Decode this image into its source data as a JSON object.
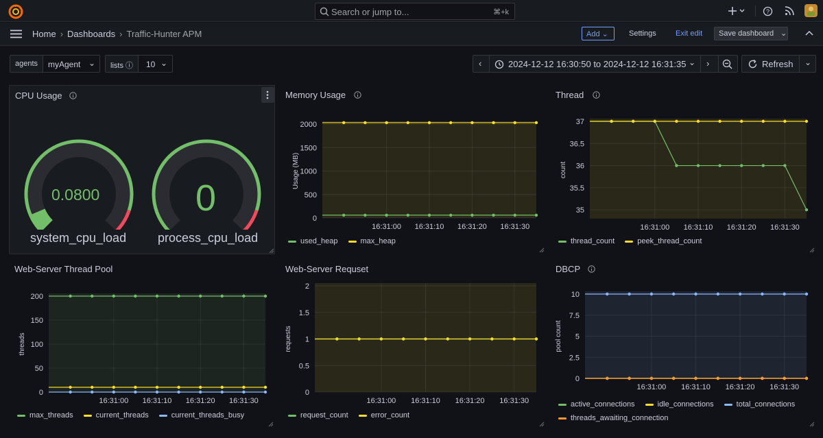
{
  "search": {
    "placeholder": "Search or jump to...",
    "shortcut": "⌘+k"
  },
  "breadcrumb": {
    "home": "Home",
    "dashboards": "Dashboards",
    "current": "Traffic-Hunter APM"
  },
  "toolbar": {
    "add": "Add",
    "settings": "Settings",
    "exit_edit": "Exit edit",
    "save": "Save dashboard"
  },
  "variables": {
    "agents_label": "agents",
    "agents_value": "myAgent",
    "lists_label": "lists",
    "lists_value": "10"
  },
  "time_range": "2024-12-12 16:30:50 to 2024-12-12 16:31:35",
  "refresh_label": "Refresh",
  "colors": {
    "green": "#73bf69",
    "yellow": "#fade2a",
    "blue": "#8ab8ff",
    "orange": "#ff9830",
    "red": "#f2495c"
  },
  "panels": {
    "cpu": {
      "title": "CPU Usage",
      "gauges": [
        {
          "name": "system_cpu_load",
          "display": "0.0800",
          "fraction": 0.08
        },
        {
          "name": "process_cpu_load",
          "display": "0",
          "fraction": 0
        }
      ]
    },
    "memory": {
      "title": "Memory Usage"
    },
    "thread": {
      "title": "Thread"
    },
    "pool": {
      "title": "Web-Server Thread Pool"
    },
    "request": {
      "title": "Web-Server Requset"
    },
    "dbcp": {
      "title": "DBCP"
    }
  },
  "chart_data": [
    {
      "id": "memory",
      "type": "line",
      "ylabel": "Usage (MB)",
      "ylim": [
        0,
        2000
      ],
      "yticks": [
        "0",
        "500",
        "1000",
        "1500",
        "2000"
      ],
      "xticks": [
        "16:31:00",
        "16:31:10",
        "16:31:20",
        "16:31:30"
      ],
      "x": [
        50,
        55,
        60,
        65,
        70,
        75,
        80,
        85,
        90,
        95
      ],
      "series": [
        {
          "name": "used_heap",
          "color": "#73bf69",
          "values": [
            60,
            60,
            60,
            60,
            60,
            60,
            60,
            60,
            60,
            60
          ]
        },
        {
          "name": "max_heap",
          "color": "#fade2a",
          "values": [
            2030,
            2030,
            2030,
            2030,
            2030,
            2030,
            2030,
            2030,
            2030,
            2030
          ]
        }
      ]
    },
    {
      "id": "thread",
      "type": "line",
      "ylabel": "count",
      "ylim": [
        34.8,
        37
      ],
      "yticks": [
        "35",
        "35.5",
        "36",
        "36.5",
        "37"
      ],
      "xticks": [
        "16:31:00",
        "16:31:10",
        "16:31:20",
        "16:31:30"
      ],
      "x": [
        50,
        55,
        60,
        65,
        70,
        75,
        80,
        85,
        90,
        95
      ],
      "series": [
        {
          "name": "thread_count",
          "color": "#73bf69",
          "values": [
            37,
            37,
            37,
            36,
            36,
            36,
            36,
            36,
            36,
            35
          ]
        },
        {
          "name": "peek_thread_count",
          "color": "#fade2a",
          "values": [
            37,
            37,
            37,
            37,
            37,
            37,
            37,
            37,
            37,
            37
          ]
        }
      ]
    },
    {
      "id": "pool",
      "type": "line",
      "ylabel": "threads",
      "ylim": [
        0,
        200
      ],
      "yticks": [
        "0",
        "50",
        "100",
        "150",
        "200"
      ],
      "xticks": [
        "16:31:00",
        "16:31:10",
        "16:31:20",
        "16:31:30"
      ],
      "x": [
        50,
        55,
        60,
        65,
        70,
        75,
        80,
        85,
        90,
        95
      ],
      "series": [
        {
          "name": "max_threads",
          "color": "#73bf69",
          "values": [
            200,
            200,
            200,
            200,
            200,
            200,
            200,
            200,
            200,
            200
          ]
        },
        {
          "name": "current_threads",
          "color": "#fade2a",
          "values": [
            10,
            10,
            10,
            10,
            10,
            10,
            10,
            10,
            10,
            10
          ]
        },
        {
          "name": "current_threads_busy",
          "color": "#8ab8ff",
          "values": [
            0,
            0,
            0,
            0,
            0,
            0,
            0,
            0,
            0,
            0
          ]
        }
      ]
    },
    {
      "id": "request",
      "type": "line",
      "ylabel": "requests",
      "ylim": [
        0,
        2
      ],
      "yticks": [
        "0",
        "0.5",
        "1",
        "1.5",
        "2"
      ],
      "xticks": [
        "16:31:00",
        "16:31:10",
        "16:31:20",
        "16:31:30"
      ],
      "x": [
        50,
        55,
        60,
        65,
        70,
        75,
        80,
        85,
        90,
        95
      ],
      "series": [
        {
          "name": "request_count",
          "color": "#73bf69",
          "values": [
            1,
            1,
            1,
            1,
            1,
            1,
            1,
            1,
            1,
            1
          ]
        },
        {
          "name": "error_count",
          "color": "#fade2a",
          "values": [
            1,
            1,
            1,
            1,
            1,
            1,
            1,
            1,
            1,
            1
          ]
        }
      ]
    },
    {
      "id": "dbcp",
      "type": "line",
      "ylabel": "pool count",
      "ylim": [
        0,
        10
      ],
      "yticks": [
        "0",
        "2.5",
        "5",
        "7.5",
        "10"
      ],
      "xticks": [
        "16:31:00",
        "16:31:10",
        "16:31:20",
        "16:31:30"
      ],
      "x": [
        50,
        55,
        60,
        65,
        70,
        75,
        80,
        85,
        90,
        95
      ],
      "series": [
        {
          "name": "active_connections",
          "color": "#73bf69",
          "values": [
            0,
            0,
            0,
            0,
            0,
            0,
            0,
            0,
            0,
            0
          ]
        },
        {
          "name": "idle_connections",
          "color": "#fade2a",
          "values": [
            0,
            0,
            0,
            0,
            0,
            0,
            0,
            0,
            0,
            0
          ]
        },
        {
          "name": "total_connections",
          "color": "#8ab8ff",
          "values": [
            10,
            10,
            10,
            10,
            10,
            10,
            10,
            10,
            10,
            10
          ]
        },
        {
          "name": "threads_awaiting_connection",
          "color": "#ff9830",
          "values": [
            0,
            0,
            0,
            0,
            0,
            0,
            0,
            0,
            0,
            0
          ]
        }
      ]
    }
  ]
}
